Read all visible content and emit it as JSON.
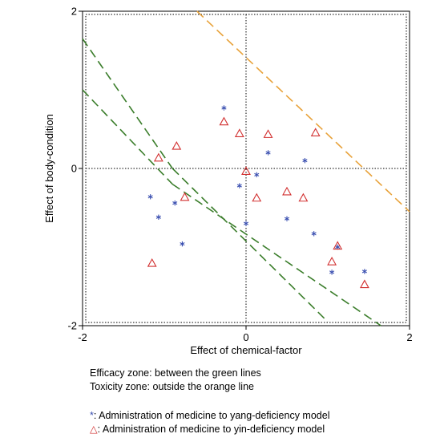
{
  "chart_data": {
    "type": "scatter",
    "title": "",
    "xlabel": "Effect of chemical-factor",
    "ylabel": "Effect of body-condition",
    "xlim": [
      -2,
      2
    ],
    "ylim": [
      -2,
      2
    ],
    "xticks": [
      -2,
      0,
      2
    ],
    "yticks": [
      -2,
      0,
      2
    ],
    "x_tick_labels": [
      "-2",
      "0",
      "2"
    ],
    "y_tick_labels": [
      "-2",
      "0",
      "2"
    ],
    "grid": false,
    "reference_lines": [
      {
        "color": "#3a7d2a",
        "style": "dashed",
        "from": [
          -2.0,
          1.65
        ],
        "to": [
          -0.9,
          0.0
        ]
      },
      {
        "color": "#3a7d2a",
        "style": "dashed",
        "from": [
          -0.9,
          0.0
        ],
        "to": [
          1.0,
          -1.95
        ]
      },
      {
        "color": "#3a7d2a",
        "style": "dashed",
        "from": [
          -2.0,
          1.0
        ],
        "to": [
          -0.9,
          -0.2
        ]
      },
      {
        "color": "#3a7d2a",
        "style": "dashed",
        "from": [
          -0.9,
          -0.2
        ],
        "to": [
          1.65,
          -2.0
        ]
      },
      {
        "color": "#e8a23a",
        "style": "dashed",
        "from": [
          -0.6,
          2.0
        ],
        "to": [
          2.0,
          -0.55
        ]
      }
    ],
    "series": [
      {
        "name": "yang",
        "marker": "asterisk",
        "color": "#3a4fb0",
        "x": [
          -0.27,
          0.27,
          0.72,
          -1.17,
          -1.07,
          -0.87,
          -0.78,
          -0.08,
          0.13,
          0.5,
          0.83,
          1.12,
          1.05,
          1.45,
          0.0
        ],
        "y": [
          0.77,
          0.2,
          0.1,
          -0.36,
          -0.62,
          -0.44,
          -0.96,
          -0.22,
          -0.08,
          -0.64,
          -0.83,
          -1.0,
          -1.32,
          -1.31,
          -0.7
        ]
      },
      {
        "name": "yin",
        "marker": "triangle",
        "color": "#d23030",
        "x": [
          -0.27,
          -0.08,
          0.27,
          0.85,
          -1.07,
          -0.85,
          -0.75,
          0.0,
          0.13,
          0.5,
          0.7,
          1.12,
          1.05,
          1.45,
          -1.15
        ],
        "y": [
          0.6,
          0.45,
          0.44,
          0.46,
          0.14,
          0.29,
          -0.36,
          -0.03,
          -0.37,
          -0.29,
          -0.37,
          -0.98,
          -1.18,
          -1.47,
          -1.2
        ]
      }
    ]
  },
  "notes": {
    "efficacy_zone": "Efficacy zone: between the green lines",
    "toxicity_zone": "Toxicity zone: outside the orange line",
    "yang_symbol": "*",
    "yang_text": ": Administration of medicine to yang-deficiency model",
    "yin_symbol": "△",
    "yin_text": ": Administration of medicine to yin-deficiency model"
  }
}
